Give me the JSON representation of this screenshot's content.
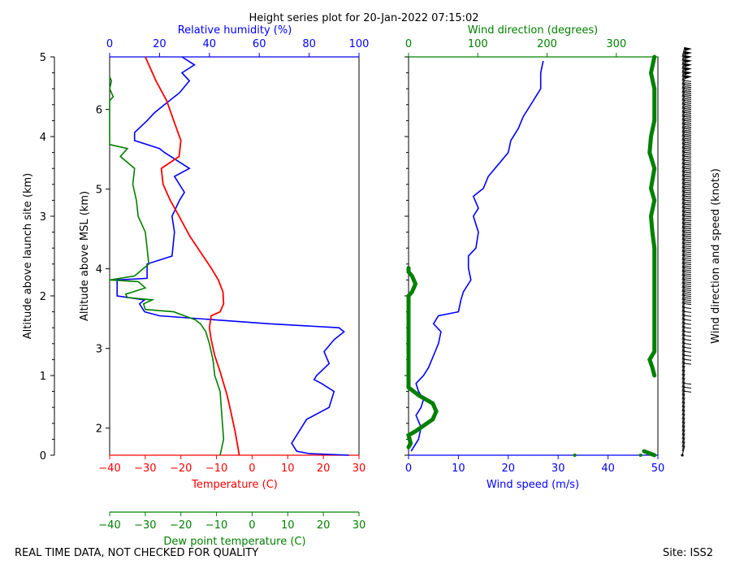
{
  "chart_data": {
    "type": "line",
    "title": "Height series plot for 20-Jan-2022 07:15:02",
    "footer_left": "REAL TIME DATA, NOT CHECKED FOR QUALITY",
    "footer_right": "Site: ISS2",
    "colors": {
      "temperature": "#ff0000",
      "dewpoint": "#008000",
      "humidity": "#0000ff",
      "wind_speed": "#0000ff",
      "wind_dir": "#008000",
      "barbs": "#000000"
    },
    "thermo_panel": {
      "xlabel_temperature": "Temperature (C)",
      "xlabel_dewpoint": "Dew point temperature (C)",
      "xlabel_humidity": "Relative humidity (%)",
      "ylabel_site": "Altitude above launch site (km)",
      "ylabel_msl": "Altitude above MSL (km)",
      "temp_range": [
        -40,
        30
      ],
      "temp_ticks": [
        "−40",
        "−30",
        "−20",
        "−10",
        "0",
        "10",
        "20",
        "30"
      ],
      "rh_range": [
        0,
        100
      ],
      "rh_ticks": [
        "0",
        "20",
        "40",
        "60",
        "80",
        "100"
      ],
      "site_range": [
        0,
        5
      ],
      "site_ticks": [
        "0",
        "1",
        "2",
        "3",
        "4",
        "5"
      ],
      "msl_ticks": [
        {
          "label": "2",
          "site_km": 0.34
        },
        {
          "label": "3",
          "site_km": 1.34
        },
        {
          "label": "4",
          "site_km": 2.34
        },
        {
          "label": "5",
          "site_km": 3.34
        },
        {
          "label": "6",
          "site_km": 4.34
        }
      ],
      "temperature": [
        [
          -3.6,
          0.0
        ],
        [
          -4.0,
          0.1
        ],
        [
          -4.8,
          0.3
        ],
        [
          -6.0,
          0.55
        ],
        [
          -7.0,
          0.75
        ],
        [
          -8.0,
          0.9
        ],
        [
          -9.0,
          1.05
        ],
        [
          -10.5,
          1.25
        ],
        [
          -11.5,
          1.45
        ],
        [
          -12.0,
          1.6
        ],
        [
          -11.5,
          1.75
        ],
        [
          -9.0,
          1.8
        ],
        [
          -8.0,
          1.9
        ],
        [
          -8.2,
          2.05
        ],
        [
          -9.5,
          2.2
        ],
        [
          -11.5,
          2.35
        ],
        [
          -14.5,
          2.55
        ],
        [
          -17.5,
          2.75
        ],
        [
          -20.5,
          3.0
        ],
        [
          -23.0,
          3.2
        ],
        [
          -25.0,
          3.4
        ],
        [
          -25.5,
          3.6
        ],
        [
          -20.5,
          3.75
        ],
        [
          -20.0,
          3.95
        ],
        [
          -22.0,
          4.2
        ],
        [
          -24.0,
          4.45
        ],
        [
          -27.0,
          4.7
        ],
        [
          -30.0,
          5.0
        ]
      ],
      "dewpoint": [
        [
          -9.0,
          0.0
        ],
        [
          -8.0,
          0.2
        ],
        [
          -8.5,
          0.5
        ],
        [
          -9.0,
          0.8
        ],
        [
          -10.5,
          1.0
        ],
        [
          -11.0,
          1.2
        ],
        [
          -12.0,
          1.4
        ],
        [
          -13.0,
          1.55
        ],
        [
          -14.5,
          1.65
        ],
        [
          -16.0,
          1.7
        ],
        [
          -22.0,
          1.8
        ],
        [
          -30.0,
          1.83
        ],
        [
          -30.5,
          1.9
        ],
        [
          -28.0,
          1.95
        ],
        [
          -35.0,
          1.98
        ],
        [
          -35.5,
          2.02
        ],
        [
          -30.0,
          2.1
        ],
        [
          -32.0,
          2.18
        ],
        [
          -40.0,
          2.2
        ],
        [
          -33.0,
          2.25
        ],
        [
          -29.0,
          2.4
        ],
        [
          -29.5,
          2.6
        ],
        [
          -30.0,
          2.8
        ],
        [
          -32.0,
          3.0
        ],
        [
          -32.5,
          3.2
        ],
        [
          -33.5,
          3.4
        ],
        [
          -33.0,
          3.6
        ],
        [
          -37.0,
          3.75
        ],
        [
          -35.0,
          3.85
        ],
        [
          -40.0,
          3.9
        ],
        [
          -40.0,
          4.45
        ],
        [
          -39.0,
          4.5
        ],
        [
          -40.0,
          4.6
        ],
        [
          -39.5,
          4.7
        ],
        [
          -40.0,
          4.75
        ]
      ],
      "humidity": [
        [
          96.0,
          0.0
        ],
        [
          80.0,
          0.02
        ],
        [
          75.0,
          0.05
        ],
        [
          73.0,
          0.15
        ],
        [
          76.0,
          0.3
        ],
        [
          79.0,
          0.45
        ],
        [
          88.0,
          0.6
        ],
        [
          90.0,
          0.8
        ],
        [
          85.0,
          0.9
        ],
        [
          82.0,
          0.95
        ],
        [
          83.0,
          1.0
        ],
        [
          88.0,
          1.15
        ],
        [
          86.0,
          1.3
        ],
        [
          90.0,
          1.45
        ],
        [
          94.0,
          1.55
        ],
        [
          92.0,
          1.6
        ],
        [
          64.0,
          1.65
        ],
        [
          20.0,
          1.75
        ],
        [
          14.0,
          1.8
        ],
        [
          12.0,
          1.9
        ],
        [
          14.0,
          1.95
        ],
        [
          3.0,
          2.0
        ],
        [
          3.0,
          2.2
        ],
        [
          15.0,
          2.22
        ],
        [
          15.0,
          2.4
        ],
        [
          25.0,
          2.5
        ],
        [
          26.0,
          2.8
        ],
        [
          25.0,
          3.0
        ],
        [
          28.0,
          3.2
        ],
        [
          30.0,
          3.3
        ],
        [
          26.0,
          3.5
        ],
        [
          32.0,
          3.6
        ],
        [
          22.0,
          3.8
        ],
        [
          20.0,
          3.85
        ],
        [
          10.0,
          3.95
        ],
        [
          10.0,
          4.05
        ],
        [
          15.0,
          4.2
        ],
        [
          18.0,
          4.3
        ],
        [
          22.0,
          4.4
        ],
        [
          28.0,
          4.55
        ],
        [
          32.0,
          4.7
        ],
        [
          29.0,
          4.8
        ],
        [
          34.0,
          4.9
        ],
        [
          29.0,
          5.0
        ]
      ]
    },
    "wind_panel": {
      "xlabel_speed": "Wind speed (m/s)",
      "xlabel_direction": "Wind direction (degrees)",
      "ylabel_barbs": "Wind direction and speed (knots)",
      "speed_range": [
        0,
        50
      ],
      "speed_ticks": [
        "0",
        "10",
        "20",
        "30",
        "40",
        "50"
      ],
      "dir_range": [
        0,
        360
      ],
      "dir_ticks": [
        "0",
        "100",
        "200",
        "300"
      ],
      "speed": [
        [
          0.5,
          0.05
        ],
        [
          2.0,
          0.2
        ],
        [
          2.5,
          0.35
        ],
        [
          1.5,
          0.5
        ],
        [
          2.5,
          0.6
        ],
        [
          3.0,
          0.7
        ],
        [
          2.0,
          0.8
        ],
        [
          1.5,
          0.9
        ],
        [
          3.0,
          1.0
        ],
        [
          4.0,
          1.1
        ],
        [
          5.0,
          1.25
        ],
        [
          6.0,
          1.4
        ],
        [
          6.5,
          1.55
        ],
        [
          5.0,
          1.65
        ],
        [
          6.0,
          1.75
        ],
        [
          10.0,
          1.8
        ],
        [
          10.5,
          1.95
        ],
        [
          11.0,
          2.05
        ],
        [
          12.5,
          2.2
        ],
        [
          12.0,
          2.35
        ],
        [
          12.0,
          2.5
        ],
        [
          13.5,
          2.6
        ],
        [
          14.0,
          2.8
        ],
        [
          13.0,
          3.0
        ],
        [
          14.0,
          3.1
        ],
        [
          13.0,
          3.25
        ],
        [
          15.0,
          3.35
        ],
        [
          16.0,
          3.5
        ],
        [
          18.0,
          3.65
        ],
        [
          20.0,
          3.8
        ],
        [
          20.5,
          3.95
        ],
        [
          22.0,
          4.1
        ],
        [
          23.0,
          4.25
        ],
        [
          24.0,
          4.35
        ],
        [
          25.0,
          4.45
        ],
        [
          26.5,
          4.6
        ],
        [
          26.5,
          4.8
        ],
        [
          27.0,
          4.95
        ]
      ],
      "direction": [
        [
          355,
          0.0
        ],
        [
          340,
          0.05
        ],
        [
          0,
          0.1
        ],
        [
          3,
          0.15
        ],
        [
          0,
          0.25
        ],
        [
          10,
          0.3
        ],
        [
          35,
          0.45
        ],
        [
          40,
          0.55
        ],
        [
          35,
          0.65
        ],
        [
          15,
          0.75
        ],
        [
          0,
          0.85
        ],
        [
          0,
          2.0
        ],
        [
          5,
          2.05
        ],
        [
          10,
          2.15
        ],
        [
          5,
          2.25
        ],
        [
          0,
          2.3
        ],
        [
          0,
          2.35
        ],
        [
          355,
          1.0
        ],
        [
          352,
          1.1
        ],
        [
          348,
          1.2
        ],
        [
          355,
          1.3
        ],
        [
          355,
          2.35
        ],
        [
          355,
          2.6
        ],
        [
          352,
          2.8
        ],
        [
          350,
          3.0
        ],
        [
          355,
          3.2
        ],
        [
          350,
          3.35
        ],
        [
          355,
          3.6
        ],
        [
          348,
          3.8
        ],
        [
          350,
          4.0
        ],
        [
          355,
          4.2
        ],
        [
          355,
          4.6
        ],
        [
          350,
          4.8
        ],
        [
          355,
          5.0
        ]
      ],
      "direction_dots": [
        [
          240,
          0.0
        ],
        [
          335,
          0.0
        ]
      ],
      "barb_top_km": 5.0,
      "barb_bottom_km": 0.0
    }
  }
}
